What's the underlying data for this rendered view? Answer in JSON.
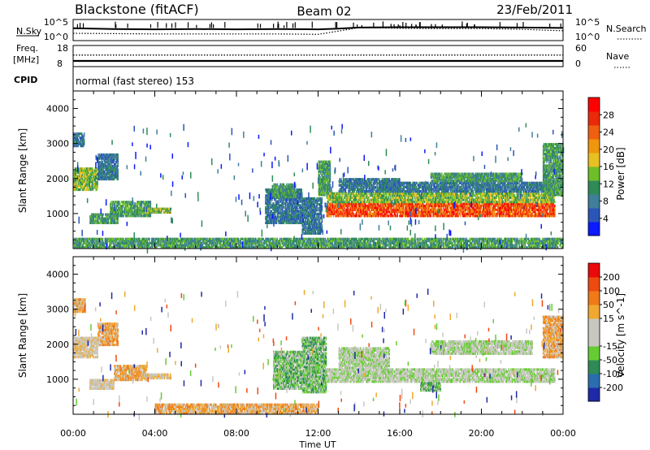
{
  "header": {
    "station": "Blackstone (fitACF)",
    "beam": "Beam 02",
    "date": "23/Feb/2011"
  },
  "chart_data": [
    {
      "type": "line",
      "panel": "sky-search-counts",
      "left_label": "N.Sky",
      "right_label": "N.Search",
      "left_ticks": [
        "10^5",
        "10^0"
      ],
      "right_ticks": [
        "10^5",
        "10^0"
      ],
      "x": [
        0,
        2,
        4,
        6,
        8,
        10,
        12,
        13,
        14,
        16,
        18,
        20,
        22,
        24
      ],
      "series": [
        {
          "name": "N.Sky",
          "style": "solid",
          "values_log10": [
            3.0,
            2.8,
            2.7,
            2.8,
            2.7,
            2.8,
            2.7,
            2.9,
            3.2,
            3.3,
            3.3,
            3.3,
            3.2,
            3.1
          ]
        },
        {
          "name": "N.Search",
          "style": "dotted",
          "values_log10": [
            1.6,
            1.5,
            1.4,
            1.4,
            1.4,
            1.4,
            1.3,
            2.2,
            3.2,
            3.0,
            2.9,
            2.9,
            2.7,
            2.3
          ]
        }
      ]
    },
    {
      "type": "line",
      "panel": "freq-nave",
      "left_label": "Freq.",
      "left_unit": "[MHz]",
      "right_label": "Nave",
      "left_ticks": [
        "18",
        "8"
      ],
      "right_ticks": [
        "60",
        "0"
      ],
      "ylim_left": [
        8,
        18
      ],
      "ylim_right": [
        0,
        60
      ],
      "series": [
        {
          "name": "Freq.",
          "style": "solid",
          "values": [
            10.5,
            10.5
          ]
        },
        {
          "name": "Nave",
          "style": "dotted",
          "values": [
            33,
            33
          ]
        }
      ]
    },
    {
      "type": "text",
      "panel": "cpid",
      "label": "CPID",
      "text": "normal (fast stereo) 153"
    },
    {
      "type": "heatmap",
      "panel": "power",
      "ylabel": "Slant Range [km]",
      "xlim": [
        0,
        24
      ],
      "ylim": [
        0,
        4500
      ],
      "yticks": [
        1000,
        2000,
        3000,
        4000
      ],
      "colorbar": {
        "label": "Power [dB]",
        "ticks": [
          "4",
          "8",
          "12",
          "16",
          "20",
          "24",
          "28"
        ],
        "colors": [
          "#0b1aff",
          "#2a56b8",
          "#3f7f9a",
          "#2e8b57",
          "#6dbf2a",
          "#e8c021",
          "#f0960e",
          "#ef6010",
          "#ea2a0a",
          "#ff0000"
        ]
      },
      "regions": [
        {
          "t0": 0.0,
          "t1": 0.55,
          "r0": 2900,
          "r1": 3300,
          "level": 2
        },
        {
          "t0": 0.0,
          "t1": 1.2,
          "r0": 1650,
          "r1": 2300,
          "level": 4
        },
        {
          "t0": 1.2,
          "t1": 2.2,
          "r0": 1950,
          "r1": 2700,
          "level": 2
        },
        {
          "t0": 0.8,
          "t1": 2.2,
          "r0": 700,
          "r1": 1000,
          "level": 3
        },
        {
          "t0": 1.8,
          "t1": 3.8,
          "r0": 900,
          "r1": 1350,
          "level": 3
        },
        {
          "t0": 3.3,
          "t1": 4.8,
          "r0": 1000,
          "r1": 1150,
          "level": 4
        },
        {
          "t0": 9.4,
          "t1": 11.2,
          "r0": 700,
          "r1": 1700,
          "level": 2
        },
        {
          "t0": 9.8,
          "t1": 10.9,
          "r0": 1450,
          "r1": 1850,
          "level": 3
        },
        {
          "t0": 11.2,
          "t1": 12.2,
          "r0": 400,
          "r1": 1450,
          "level": 2
        },
        {
          "t0": 12.0,
          "t1": 12.6,
          "r0": 1500,
          "r1": 2500,
          "level": 3
        },
        {
          "t0": 12.4,
          "t1": 23.6,
          "r0": 900,
          "r1": 1300,
          "level": 8
        },
        {
          "t0": 12.4,
          "t1": 23.6,
          "r0": 1300,
          "r1": 1600,
          "level": 4
        },
        {
          "t0": 13.0,
          "t1": 16.0,
          "r0": 1600,
          "r1": 2000,
          "level": 2
        },
        {
          "t0": 15.0,
          "t1": 23.5,
          "r0": 1600,
          "r1": 1900,
          "level": 2
        },
        {
          "t0": 17.5,
          "t1": 22.0,
          "r0": 1900,
          "r1": 2150,
          "level": 3
        },
        {
          "t0": 23.0,
          "t1": 24.0,
          "r0": 1500,
          "r1": 3000,
          "level": 3
        },
        {
          "t0": 0.0,
          "t1": 24.0,
          "r0": 0,
          "r1": 300,
          "level": 3
        }
      ]
    },
    {
      "type": "heatmap",
      "panel": "velocity",
      "ylabel": "Slant Range [km]",
      "xlabel": "Time UT",
      "xlim": [
        0,
        24
      ],
      "ylim": [
        0,
        4500
      ],
      "yticks": [
        1000,
        2000,
        3000,
        4000
      ],
      "xtick_labels": [
        "00:00",
        "04:00",
        "08:00",
        "12:00",
        "16:00",
        "20:00",
        "00:00"
      ],
      "colorbar": {
        "label": "Velocity [m s^-1]",
        "ticks": [
          "200",
          "100",
          "50",
          "15",
          "-15",
          "-50",
          "-100",
          "-200"
        ],
        "colors": [
          "#1e2aa8",
          "#2a6db0",
          "#2e8b57",
          "#66cc33",
          "#c8c8c0",
          "#c8c8c0",
          "#f0a830",
          "#f07a18",
          "#ef4a10",
          "#ea0a0a"
        ]
      },
      "regions": [
        {
          "t0": 0.0,
          "t1": 1.2,
          "r0": 1600,
          "r1": 2200,
          "level": 5
        },
        {
          "t0": 0.0,
          "t1": 0.6,
          "r0": 2900,
          "r1": 3300,
          "level": 6
        },
        {
          "t0": 1.2,
          "t1": 2.2,
          "r0": 1950,
          "r1": 2600,
          "level": 6
        },
        {
          "t0": 0.8,
          "t1": 2.0,
          "r0": 700,
          "r1": 1000,
          "level": 5
        },
        {
          "t0": 2.0,
          "t1": 3.6,
          "r0": 950,
          "r1": 1400,
          "level": 6
        },
        {
          "t0": 3.3,
          "t1": 4.8,
          "r0": 1000,
          "r1": 1150,
          "level": 5
        },
        {
          "t0": 9.8,
          "t1": 11.2,
          "r0": 700,
          "r1": 1800,
          "level": 3
        },
        {
          "t0": 11.2,
          "t1": 12.4,
          "r0": 600,
          "r1": 2200,
          "level": 3
        },
        {
          "t0": 12.4,
          "t1": 23.6,
          "r0": 900,
          "r1": 1300,
          "level": 4
        },
        {
          "t0": 13.0,
          "t1": 15.5,
          "r0": 1300,
          "r1": 1900,
          "level": 4
        },
        {
          "t0": 17.0,
          "t1": 18.0,
          "r0": 650,
          "r1": 900,
          "level": 3
        },
        {
          "t0": 17.5,
          "t1": 22.5,
          "r0": 1700,
          "r1": 2100,
          "level": 4
        },
        {
          "t0": 23.0,
          "t1": 24.0,
          "r0": 1600,
          "r1": 2800,
          "level": 6
        },
        {
          "t0": 4.0,
          "t1": 12.0,
          "r0": 0,
          "r1": 300,
          "level": 6
        }
      ]
    }
  ]
}
